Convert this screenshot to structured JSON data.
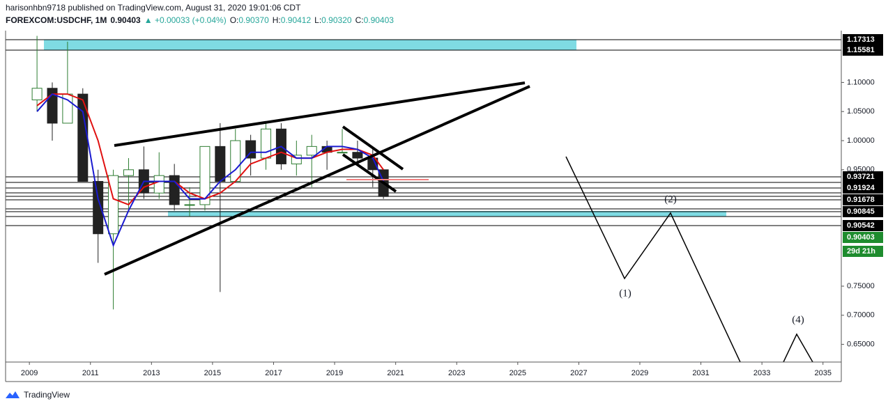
{
  "header": {
    "byline": "harisonhbn9718 published on TradingView.com, August 31, 2020 19:01:06 CDT",
    "quote": [
      {
        "text": "FOREXCOM:USDCHF, 1M",
        "color": "#131722"
      },
      {
        "text": "0.90403",
        "color": "#131722"
      },
      {
        "text": "▲ +0.00033 (+0.04%)",
        "color": "#26a69a"
      },
      {
        "text": "O:",
        "color": "#131722"
      },
      {
        "text": "0.90370",
        "color": "#26a69a"
      },
      {
        "text": "H:",
        "color": "#131722"
      },
      {
        "text": "0.90412",
        "color": "#26a69a"
      },
      {
        "text": "L:",
        "color": "#131722"
      },
      {
        "text": "0.90320",
        "color": "#26a69a"
      },
      {
        "text": "C:",
        "color": "#131722"
      },
      {
        "text": "0.90403",
        "color": "#26a69a"
      }
    ]
  },
  "chart_data": {
    "type": "candlestick",
    "x": [
      2009.25,
      2009.75,
      2010.25,
      2010.75,
      2011.25,
      2011.75,
      2012.25,
      2012.75,
      2013.25,
      2013.75,
      2014.25,
      2014.75,
      2015.25,
      2015.75,
      2016.25,
      2016.75,
      2017.25,
      2017.75,
      2018.25,
      2018.75,
      2019.25,
      2019.75,
      2020.25,
      2020.6
    ],
    "open": [
      1.07,
      1.09,
      1.03,
      1.08,
      0.93,
      0.84,
      0.94,
      0.95,
      0.91,
      0.94,
      0.89,
      0.89,
      0.99,
      0.93,
      1.0,
      0.97,
      1.02,
      0.96,
      0.975,
      0.99,
      0.98,
      0.98,
      0.97,
      0.95
    ],
    "high": [
      1.18,
      1.1,
      1.17,
      1.09,
      0.95,
      0.95,
      0.97,
      0.99,
      0.98,
      0.96,
      0.92,
      0.99,
      1.03,
      1.02,
      1.01,
      1.03,
      1.03,
      1.0,
      1.01,
      1.0,
      1.02,
      1.0,
      0.99,
      0.95
    ],
    "low": [
      1.05,
      1.0,
      1.03,
      0.93,
      0.79,
      0.71,
      0.88,
      0.9,
      0.9,
      0.88,
      0.87,
      0.88,
      0.74,
      0.93,
      0.94,
      0.95,
      0.95,
      0.94,
      0.92,
      0.95,
      0.98,
      0.96,
      0.92,
      0.9
    ],
    "close": [
      1.09,
      1.03,
      1.08,
      0.93,
      0.84,
      0.94,
      0.95,
      0.91,
      0.94,
      0.89,
      0.89,
      0.99,
      0.93,
      1.0,
      0.97,
      1.02,
      0.96,
      0.975,
      0.99,
      0.98,
      0.98,
      0.97,
      0.95,
      0.904
    ],
    "series": [
      {
        "color": "#e01010",
        "values": [
          1.06,
          1.08,
          1.08,
          1.07,
          1.0,
          0.9,
          0.89,
          0.92,
          0.93,
          0.93,
          0.91,
          0.9,
          0.91,
          0.93,
          0.96,
          0.97,
          0.98,
          0.97,
          0.97,
          0.98,
          0.985,
          0.985,
          0.975,
          0.95
        ]
      },
      {
        "color": "#1a1ad0",
        "values": [
          1.05,
          1.08,
          1.07,
          1.05,
          0.9,
          0.82,
          0.88,
          0.93,
          0.93,
          0.93,
          0.9,
          0.9,
          0.93,
          0.95,
          0.98,
          0.98,
          0.99,
          0.97,
          0.97,
          0.99,
          0.99,
          0.985,
          0.97,
          0.93
        ]
      }
    ],
    "up_color": "#2e7d32",
    "down_color": "#222222",
    "xlim": [
      2008.22,
      2035.6
    ],
    "xticks": [
      2009,
      2011,
      2013,
      2015,
      2017,
      2019,
      2021,
      2023,
      2025,
      2027,
      2029,
      2031,
      2033,
      2035
    ],
    "ylim": [
      0.6196,
      1.189
    ],
    "yticks": [
      {
        "value": 0.65,
        "label": "0.65000"
      },
      {
        "value": 0.7,
        "label": "0.70000"
      },
      {
        "value": 0.75,
        "label": "0.75000"
      },
      {
        "value": 0.95,
        "label": "0.95000"
      },
      {
        "value": 1.0,
        "label": "1.00000"
      },
      {
        "value": 1.05,
        "label": "1.05000"
      },
      {
        "value": 1.1,
        "label": "1.10000"
      }
    ],
    "price_labels": [
      "1.17313",
      "1.15581",
      "0.93721",
      "0.91924",
      "0.91678",
      "0.90845",
      "0.90542",
      "0.90403",
      "29d 21h"
    ],
    "annotations": [
      "(1)",
      "(2)",
      "(4)"
    ]
  },
  "footer": "TradingView"
}
